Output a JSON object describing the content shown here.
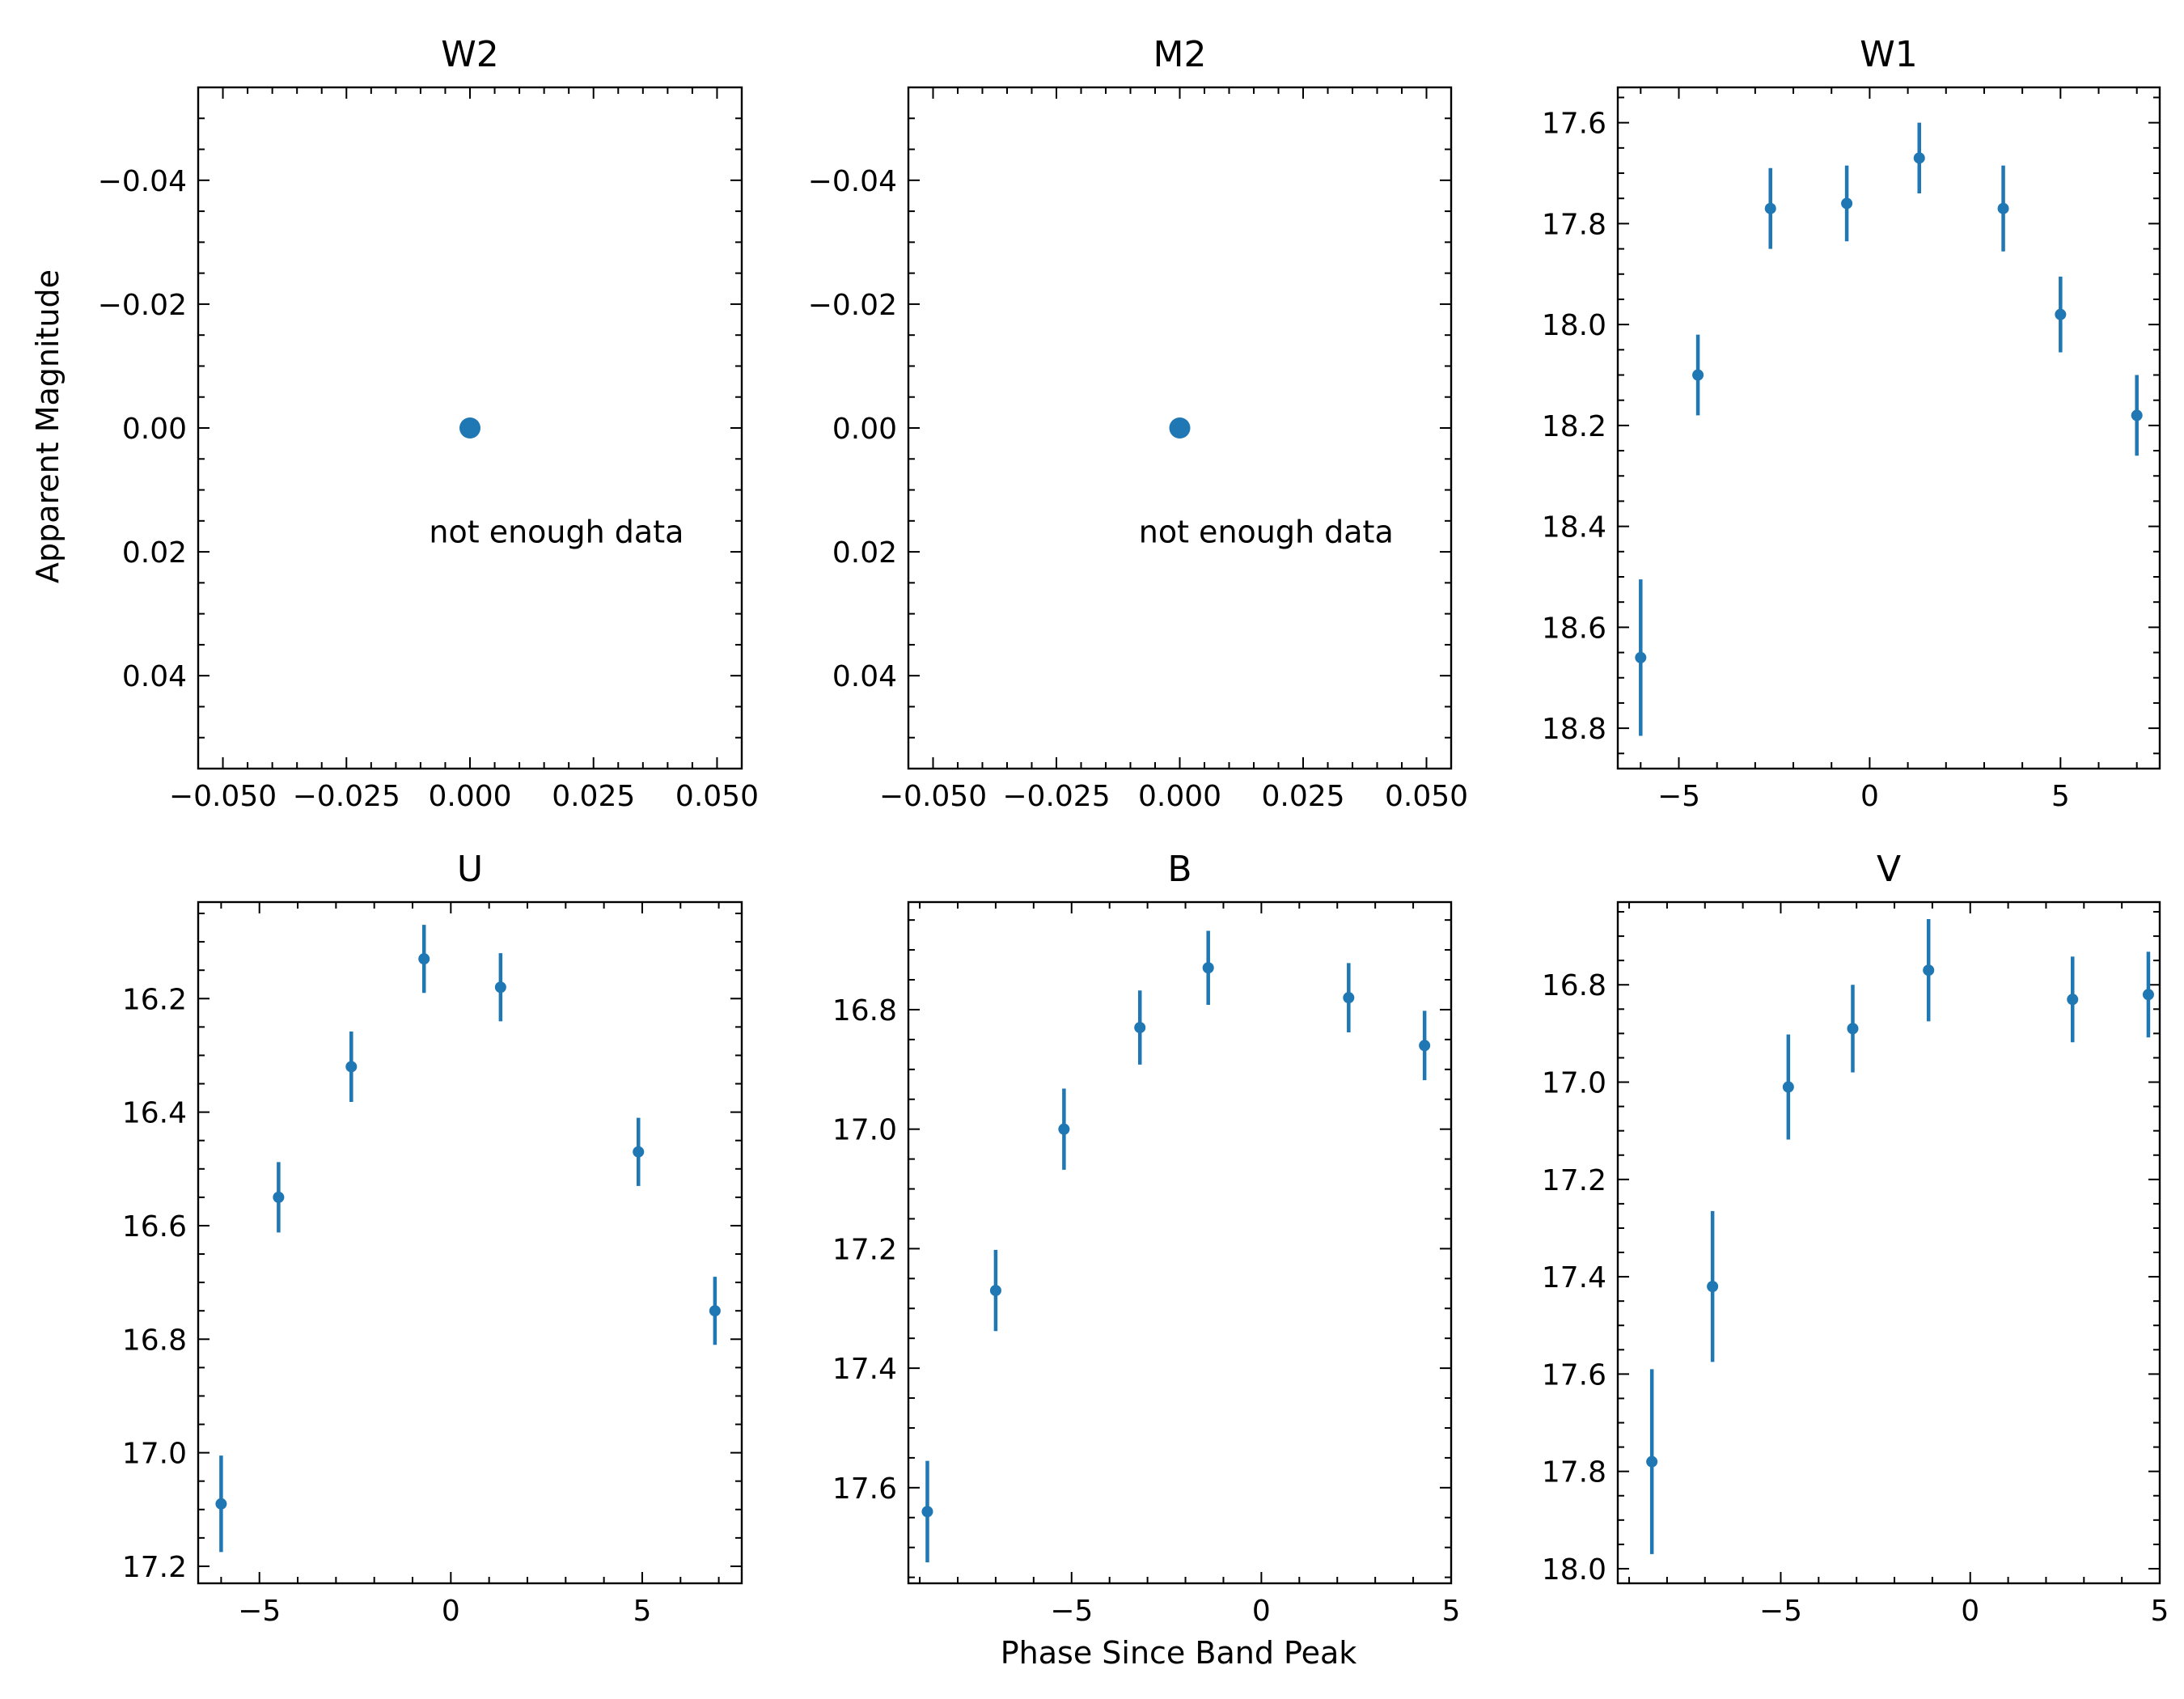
{
  "figure": {
    "ylabel": "Apparent Magnitude",
    "xlabel": "Phase Since Band Peak"
  },
  "colors": {
    "series": "#1f77b4",
    "axis": "#000000"
  },
  "chart_data": [
    {
      "type": "scatter",
      "title": "W2",
      "xlim": [
        -0.055,
        0.055
      ],
      "ylim": [
        -0.055,
        0.055
      ],
      "y_inverted": true,
      "xticks": [
        -0.05,
        -0.025,
        0.0,
        0.025,
        0.05
      ],
      "xtick_labels": [
        "−0.050",
        "−0.025",
        "0.000",
        "0.025",
        "0.050"
      ],
      "yticks": [
        -0.04,
        -0.02,
        0.0,
        0.02,
        0.04
      ],
      "ytick_labels": [
        "−0.04",
        "−0.02",
        "0.00",
        "0.02",
        "0.04"
      ],
      "x": [
        0.0
      ],
      "y": [
        0.0
      ],
      "yerr": [
        0
      ],
      "marker": "large",
      "annotation": "not enough data"
    },
    {
      "type": "scatter",
      "title": "M2",
      "xlim": [
        -0.055,
        0.055
      ],
      "ylim": [
        -0.055,
        0.055
      ],
      "y_inverted": true,
      "xticks": [
        -0.05,
        -0.025,
        0.0,
        0.025,
        0.05
      ],
      "xtick_labels": [
        "−0.050",
        "−0.025",
        "0.000",
        "0.025",
        "0.050"
      ],
      "yticks": [
        -0.04,
        -0.02,
        0.0,
        0.02,
        0.04
      ],
      "ytick_labels": [
        "−0.04",
        "−0.02",
        "0.00",
        "0.02",
        "0.04"
      ],
      "x": [
        0.0
      ],
      "y": [
        0.0
      ],
      "yerr": [
        0
      ],
      "marker": "large",
      "annotation": "not enough data"
    },
    {
      "type": "scatter",
      "title": "W1",
      "xlim": [
        -6.6,
        7.6
      ],
      "ylim": [
        17.53,
        18.88
      ],
      "y_inverted": true,
      "xticks": [
        -5,
        0,
        5
      ],
      "xtick_labels": [
        "−5",
        "0",
        "5"
      ],
      "yticks": [
        17.6,
        17.8,
        18.0,
        18.2,
        18.4,
        18.6,
        18.8
      ],
      "ytick_labels": [
        "17.6",
        "17.8",
        "18.0",
        "18.2",
        "18.4",
        "18.6",
        "18.8"
      ],
      "x": [
        -6.0,
        -4.5,
        -2.6,
        -0.6,
        1.3,
        3.5,
        5.0,
        7.0
      ],
      "y": [
        18.66,
        18.1,
        17.77,
        17.76,
        17.67,
        17.77,
        17.98,
        18.18
      ],
      "yerr": [
        0.155,
        0.08,
        0.08,
        0.075,
        0.07,
        0.085,
        0.075,
        0.08
      ],
      "marker": "small"
    },
    {
      "type": "scatter",
      "title": "U",
      "xlim": [
        -6.6,
        7.6
      ],
      "ylim": [
        16.03,
        17.23
      ],
      "y_inverted": true,
      "xticks": [
        -5,
        0,
        5
      ],
      "xtick_labels": [
        "−5",
        "0",
        "5"
      ],
      "yticks": [
        16.2,
        16.4,
        16.6,
        16.8,
        17.0,
        17.2
      ],
      "ytick_labels": [
        "16.2",
        "16.4",
        "16.6",
        "16.8",
        "17.0",
        "17.2"
      ],
      "x": [
        -6.0,
        -4.5,
        -2.6,
        -0.7,
        1.3,
        4.9,
        6.9
      ],
      "y": [
        17.09,
        16.55,
        16.32,
        16.13,
        16.18,
        16.47,
        16.75
      ],
      "yerr": [
        0.085,
        0.062,
        0.062,
        0.06,
        0.06,
        0.06,
        0.06
      ],
      "marker": "small"
    },
    {
      "type": "scatter",
      "title": "B",
      "xlim": [
        -9.3,
        5.0
      ],
      "ylim": [
        16.62,
        17.76
      ],
      "y_inverted": true,
      "xticks": [
        -5,
        0,
        5
      ],
      "xtick_labels": [
        "−5",
        "0",
        "5"
      ],
      "yticks": [
        16.8,
        17.0,
        17.2,
        17.4,
        17.6
      ],
      "ytick_labels": [
        "16.8",
        "17.0",
        "17.2",
        "17.4",
        "17.6"
      ],
      "x": [
        -8.8,
        -7.0,
        -5.2,
        -3.2,
        -1.4,
        2.3,
        4.3
      ],
      "y": [
        17.64,
        17.27,
        17.0,
        16.83,
        16.73,
        16.78,
        16.86
      ],
      "yerr": [
        0.085,
        0.068,
        0.068,
        0.062,
        0.062,
        0.058,
        0.058
      ],
      "marker": "small"
    },
    {
      "type": "scatter",
      "title": "V",
      "xlim": [
        -9.3,
        5.0
      ],
      "ylim": [
        16.63,
        18.03
      ],
      "y_inverted": true,
      "xticks": [
        -5,
        0,
        5
      ],
      "xtick_labels": [
        "−5",
        "0",
        "5"
      ],
      "yticks": [
        16.8,
        17.0,
        17.2,
        17.4,
        17.6,
        17.8,
        18.0
      ],
      "ytick_labels": [
        "16.8",
        "17.0",
        "17.2",
        "17.4",
        "17.6",
        "17.8",
        "18.0"
      ],
      "x": [
        -8.4,
        -6.8,
        -4.8,
        -3.1,
        -1.1,
        2.7,
        4.7
      ],
      "y": [
        17.78,
        17.42,
        17.01,
        16.89,
        16.77,
        16.83,
        16.82
      ],
      "yerr": [
        0.19,
        0.155,
        0.108,
        0.09,
        0.105,
        0.088,
        0.088
      ],
      "marker": "small"
    }
  ]
}
